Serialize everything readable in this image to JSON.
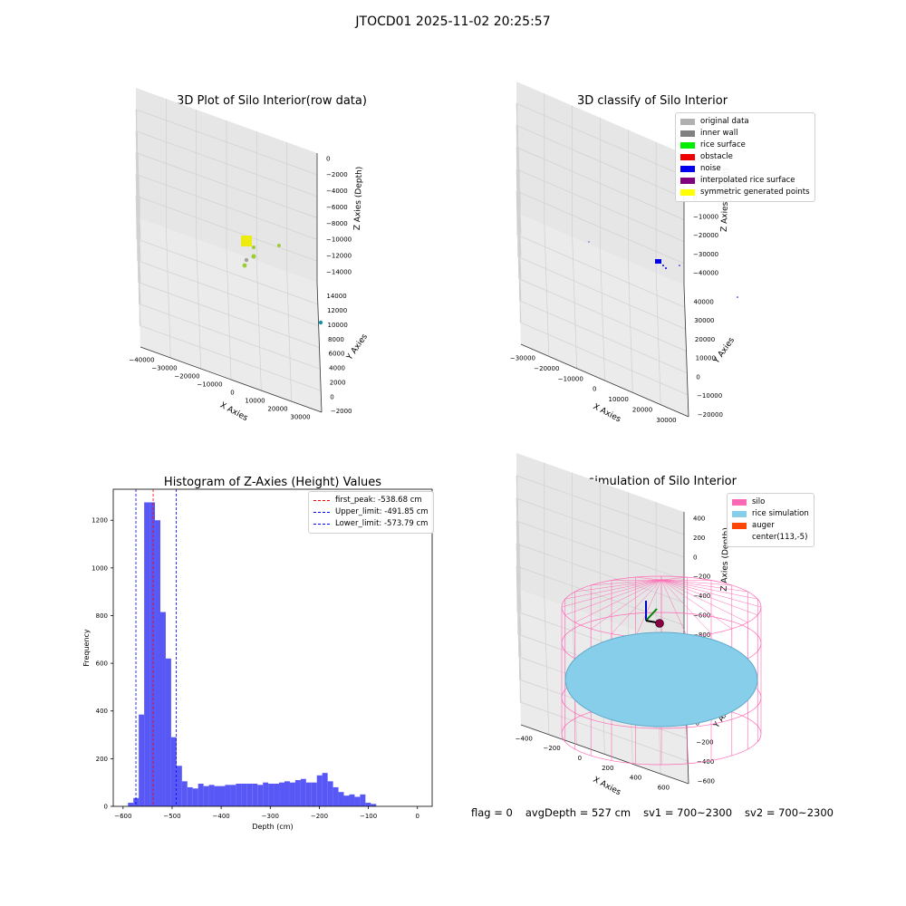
{
  "suptitle": "JTOCD01 2025-11-02 20:25:57",
  "panels": {
    "raw": {
      "title": "3D Plot of Silo Interior(row data)",
      "xlabel": "X Axies",
      "ylabel": "Y Axies",
      "zlabel": "Z Axies (Depth)",
      "x_ticks": [
        "−40000",
        "−30000",
        "−20000",
        "−10000",
        "0",
        "10000",
        "20000",
        "30000"
      ],
      "y_ticks": [
        "−2000",
        "0",
        "2000",
        "4000",
        "6000",
        "8000",
        "10000",
        "12000",
        "14000"
      ],
      "z_ticks": [
        "0",
        "−2000",
        "−4000",
        "−6000",
        "−8000",
        "−10000",
        "−12000",
        "−14000"
      ]
    },
    "classify": {
      "title": "3D classify of Silo Interior",
      "xlabel": "X Axies",
      "ylabel": "Y Axies",
      "zlabel": "Z Axies (Depth)",
      "x_ticks": [
        "−30000",
        "−20000",
        "−10000",
        "0",
        "10000",
        "20000",
        "30000"
      ],
      "y_ticks": [
        "−20000",
        "−10000",
        "0",
        "10000",
        "20000",
        "30000",
        "40000"
      ],
      "z_ticks": [
        "20000",
        "10000",
        "0",
        "−10000",
        "−20000",
        "−30000",
        "−40000"
      ],
      "legend": [
        {
          "label": "original data",
          "color": "#b0b0b0"
        },
        {
          "label": "inner wall",
          "color": "#808080"
        },
        {
          "label": "rice surface",
          "color": "#00ee00"
        },
        {
          "label": "obstacle",
          "color": "#ee0000"
        },
        {
          "label": "noise",
          "color": "#0000ee"
        },
        {
          "label": "interpolated rice surface",
          "color": "#800080"
        },
        {
          "label": "symmetric generated points",
          "color": "#ffff00"
        }
      ]
    },
    "simulation": {
      "title": "3D simulation of Silo Interior",
      "xlabel": "X Axies",
      "ylabel": "Y Axies",
      "zlabel": "Z Axies (Depth)",
      "x_ticks": [
        "−400",
        "−200",
        "0",
        "200",
        "400",
        "600"
      ],
      "y_ticks": [
        "−600",
        "−400",
        "−200",
        "0",
        "200",
        "400",
        "600"
      ],
      "z_ticks": [
        "400",
        "200",
        "0",
        "−200",
        "−400",
        "−600",
        "−800"
      ],
      "legend": [
        {
          "label": "silo",
          "color": "#ff69b4"
        },
        {
          "label": "rice simulation",
          "color": "#87ceeb"
        },
        {
          "label": "auger",
          "color": "#ff4500"
        },
        {
          "label": "center(113,-5)",
          "color": ""
        }
      ]
    }
  },
  "chart_data": {
    "type": "bar",
    "title": "Histogram of Z-Axies (Height) Values",
    "xlabel": "Depth (cm)",
    "ylabel": "Frequency",
    "xlim": [
      -620,
      30
    ],
    "ylim": [
      0,
      1330
    ],
    "x_ticks": [
      -600,
      -500,
      -400,
      -300,
      -200,
      -100,
      0
    ],
    "y_ticks": [
      0,
      200,
      400,
      600,
      800,
      1000,
      1200
    ],
    "bin_start": -590,
    "bin_width": 11,
    "values": [
      15,
      35,
      385,
      1275,
      1275,
      1200,
      815,
      620,
      290,
      170,
      105,
      80,
      75,
      95,
      85,
      90,
      85,
      85,
      90,
      90,
      95,
      95,
      95,
      95,
      90,
      100,
      95,
      95,
      100,
      105,
      100,
      110,
      115,
      100,
      100,
      130,
      140,
      105,
      80,
      60,
      45,
      50,
      40,
      50,
      15,
      10
    ],
    "bar_color": "#4f4ff5",
    "vlines": [
      {
        "label": "first_peak: -538.68 cm",
        "x": -538.68,
        "color": "#ff0000"
      },
      {
        "label": "Upper_limit: -491.85 cm",
        "x": -491.85,
        "color": "#0000ff"
      },
      {
        "label": "Lower_limit: -573.79 cm",
        "x": -573.79,
        "color": "#0000ff"
      }
    ]
  },
  "status": {
    "flag": "flag = 0",
    "avg": "avgDepth = 527 cm",
    "sv1": "sv1 = 700~2300",
    "sv2": "sv2 = 700~2300"
  }
}
